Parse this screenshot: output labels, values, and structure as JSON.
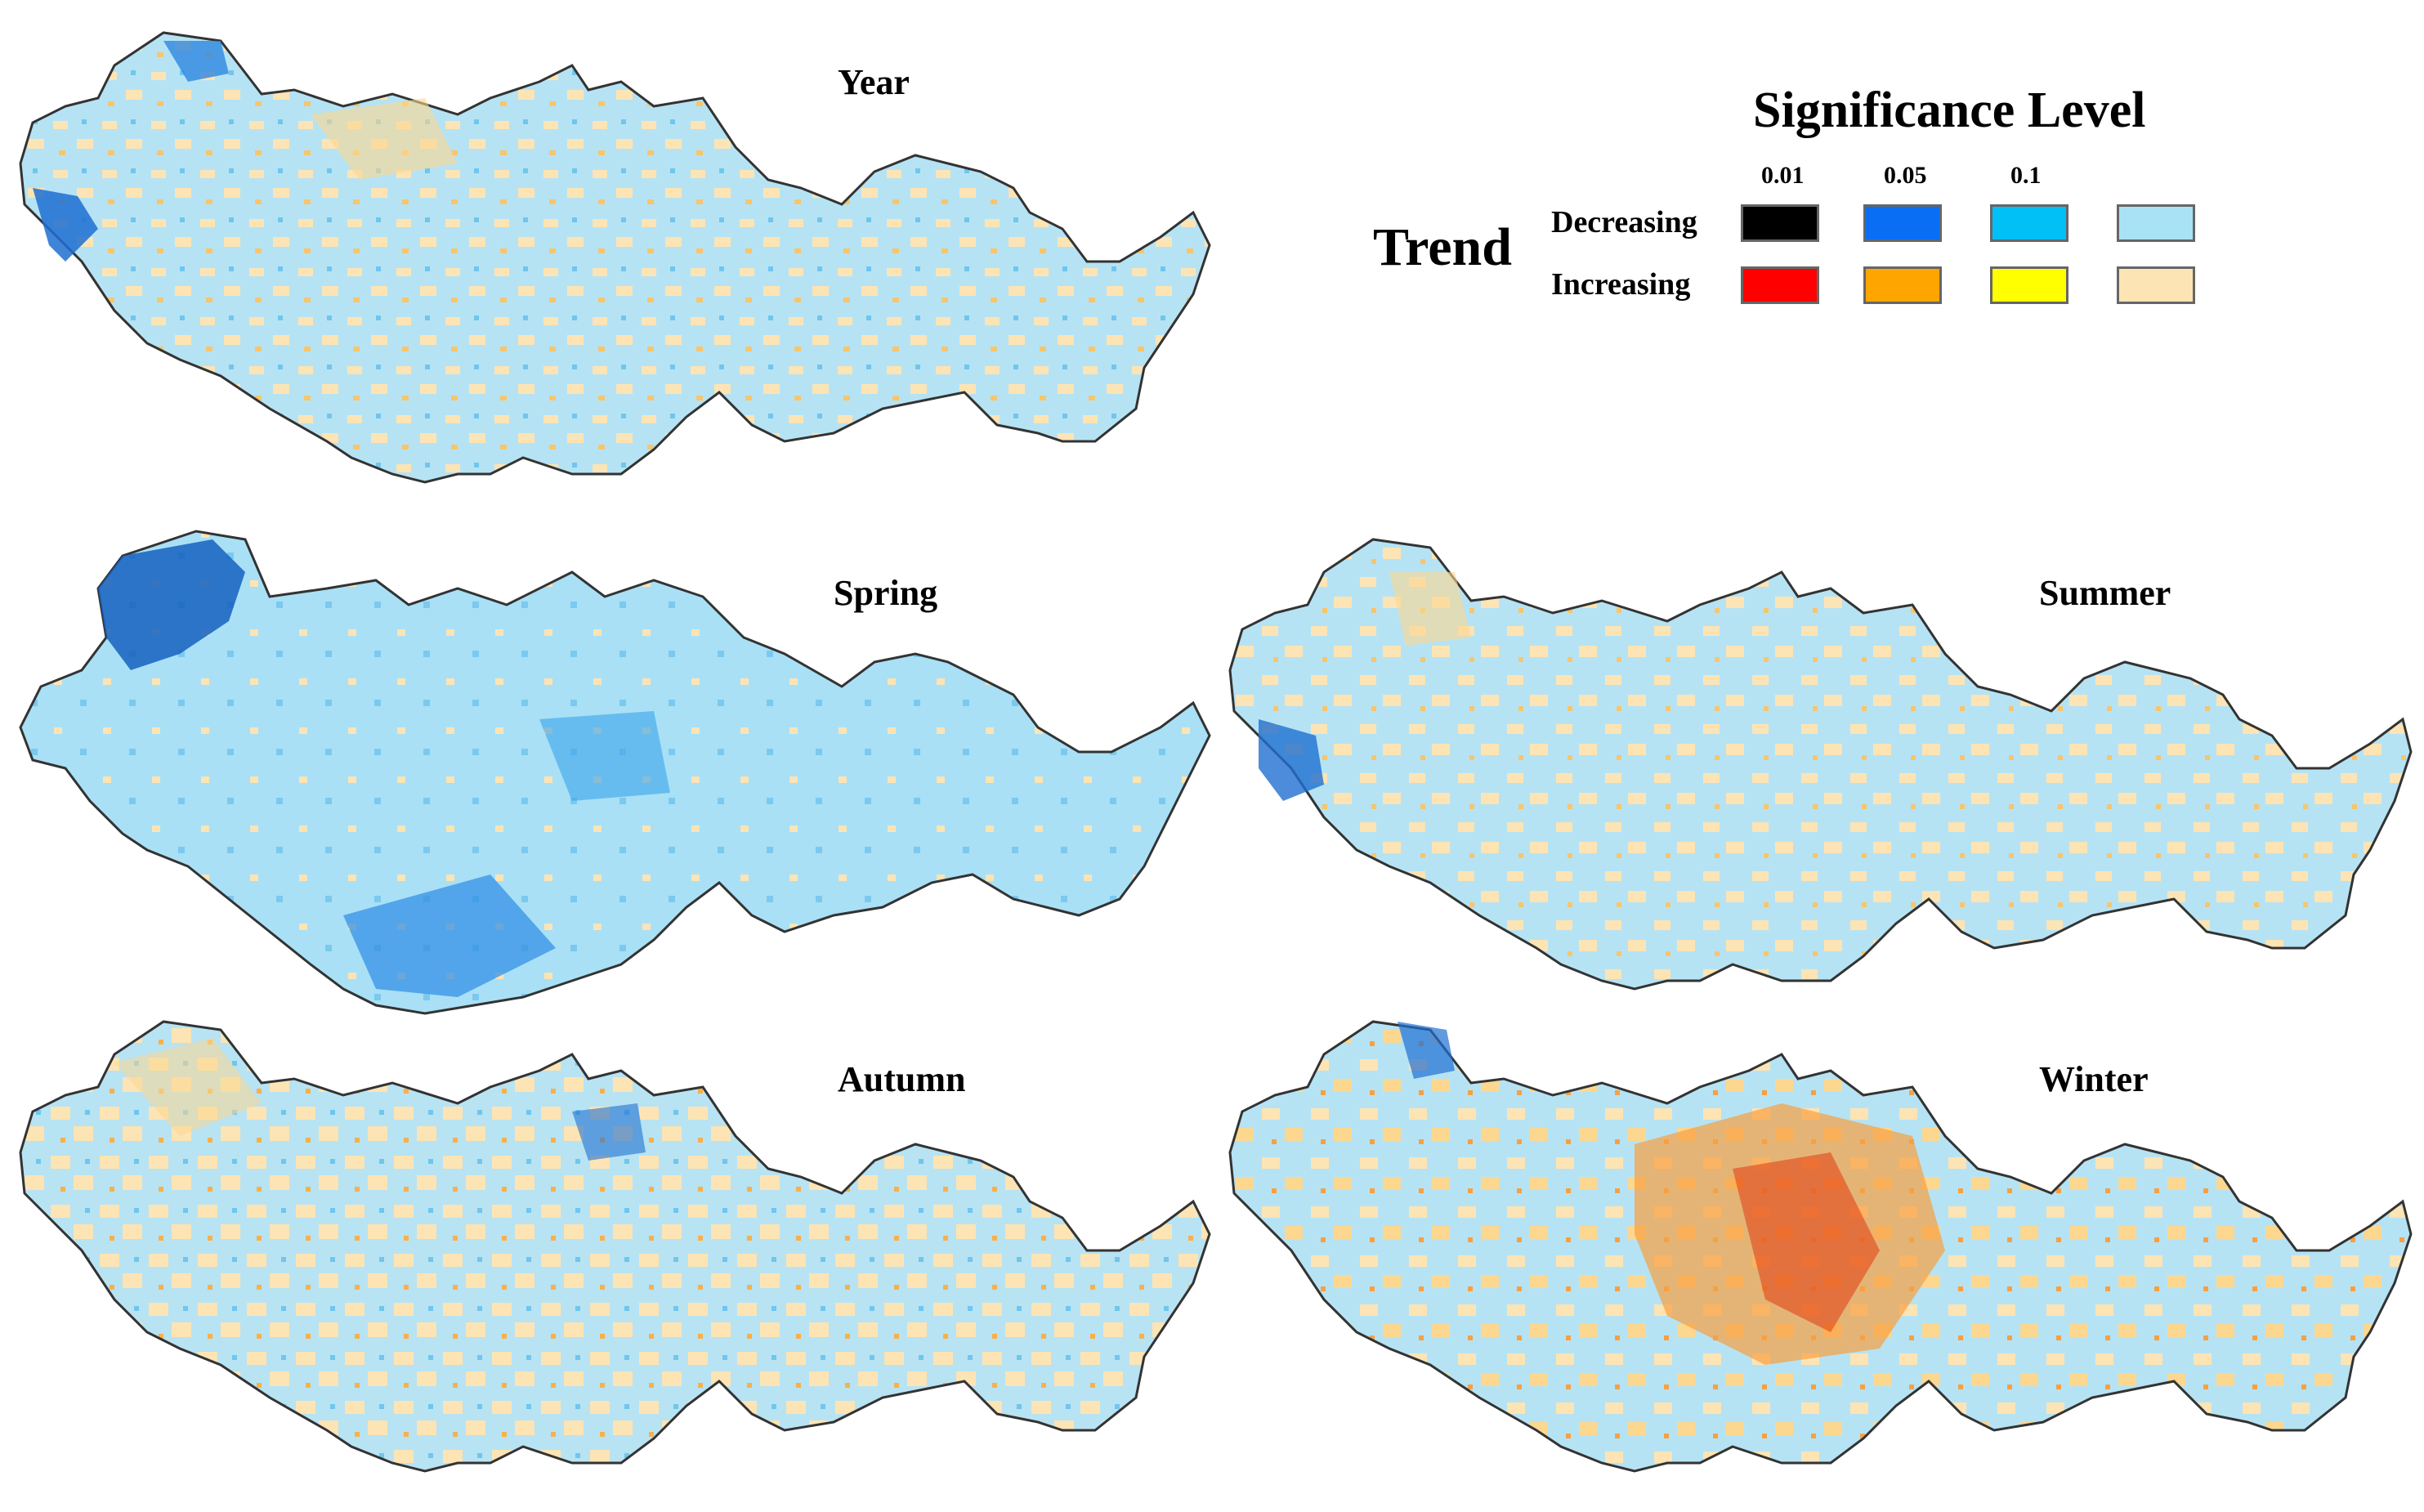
{
  "panels": [
    {
      "title": "Year",
      "colors": {
        "neutral_dec": "#a9e2f5",
        "neutral_inc": "#fde4b4"
      }
    },
    {
      "title": "Spring"
    },
    {
      "title": "Summer"
    },
    {
      "title": "Autumn"
    },
    {
      "title": "Winter"
    }
  ],
  "legend": {
    "title": "Significance Level",
    "trend_label": "Trend",
    "levels": [
      "0.01",
      "0.05",
      "0.1"
    ],
    "rows": [
      {
        "label": "Decreasing",
        "colors": [
          "#000000",
          "#0a6ef5",
          "#00c0f5",
          "#a9e2f5"
        ]
      },
      {
        "label": "Increasing",
        "colors": [
          "#ff0000",
          "#ffa500",
          "#ffff00",
          "#fde4b4"
        ]
      }
    ]
  }
}
